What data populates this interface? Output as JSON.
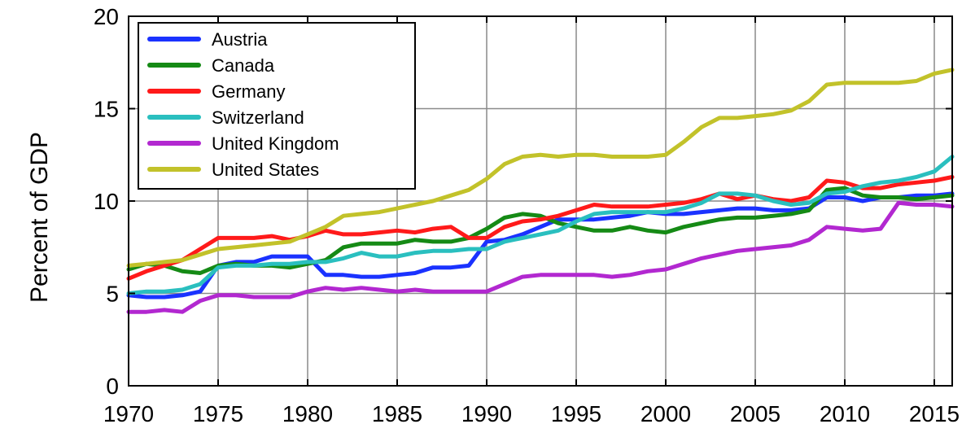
{
  "chart_data": {
    "type": "line",
    "title": "",
    "xlabel": "",
    "ylabel": "Percent of GDP",
    "xlim": [
      1970,
      2016
    ],
    "ylim": [
      0,
      20
    ],
    "xticks": [
      "1970",
      "1975",
      "1980",
      "1985",
      "1990",
      "1995",
      "2000",
      "2005",
      "2010",
      "2015"
    ],
    "yticks": [
      "0",
      "5",
      "10",
      "15",
      "20"
    ],
    "grid": true,
    "legend_position": "top-left",
    "x": [
      1970,
      1971,
      1972,
      1973,
      1974,
      1975,
      1976,
      1977,
      1978,
      1979,
      1980,
      1981,
      1982,
      1983,
      1984,
      1985,
      1986,
      1987,
      1988,
      1989,
      1990,
      1991,
      1992,
      1993,
      1994,
      1995,
      1996,
      1997,
      1998,
      1999,
      2000,
      2001,
      2002,
      2003,
      2004,
      2005,
      2006,
      2007,
      2008,
      2009,
      2010,
      2011,
      2012,
      2013,
      2014,
      2015,
      2016
    ],
    "series": [
      {
        "name": "Austria",
        "color": "#1a32ff",
        "values": [
          4.9,
          4.8,
          4.8,
          4.9,
          5.1,
          6.5,
          6.7,
          6.7,
          7.0,
          7.0,
          7.0,
          6.0,
          6.0,
          5.9,
          5.9,
          6.0,
          6.1,
          6.4,
          6.4,
          6.5,
          7.8,
          7.9,
          8.2,
          8.6,
          9.0,
          9.0,
          9.0,
          9.1,
          9.2,
          9.4,
          9.3,
          9.3,
          9.4,
          9.5,
          9.6,
          9.6,
          9.5,
          9.5,
          9.6,
          10.2,
          10.2,
          10.0,
          10.2,
          10.2,
          10.3,
          10.3,
          10.4
        ]
      },
      {
        "name": "Canada",
        "color": "#158a15",
        "values": [
          6.3,
          6.6,
          6.5,
          6.2,
          6.1,
          6.5,
          6.6,
          6.5,
          6.5,
          6.4,
          6.6,
          6.8,
          7.5,
          7.7,
          7.7,
          7.7,
          7.9,
          7.8,
          7.8,
          8.0,
          8.5,
          9.1,
          9.3,
          9.2,
          8.8,
          8.6,
          8.4,
          8.4,
          8.6,
          8.4,
          8.3,
          8.6,
          8.8,
          9.0,
          9.1,
          9.1,
          9.2,
          9.3,
          9.5,
          10.6,
          10.7,
          10.3,
          10.2,
          10.2,
          10.1,
          10.2,
          10.3
        ]
      },
      {
        "name": "Germany",
        "color": "#ff1a1a",
        "values": [
          5.8,
          6.2,
          6.5,
          6.8,
          7.4,
          8.0,
          8.0,
          8.0,
          8.1,
          7.9,
          8.1,
          8.4,
          8.2,
          8.2,
          8.3,
          8.4,
          8.3,
          8.5,
          8.6,
          8.0,
          8.0,
          8.6,
          8.9,
          9.0,
          9.2,
          9.5,
          9.8,
          9.7,
          9.7,
          9.7,
          9.8,
          9.9,
          10.1,
          10.4,
          10.1,
          10.3,
          10.1,
          10.0,
          10.2,
          11.1,
          11.0,
          10.7,
          10.7,
          10.9,
          11.0,
          11.1,
          11.3
        ]
      },
      {
        "name": "Switzerland",
        "color": "#2abfbf",
        "values": [
          5.0,
          5.1,
          5.1,
          5.2,
          5.5,
          6.4,
          6.5,
          6.5,
          6.6,
          6.6,
          6.7,
          6.7,
          6.9,
          7.2,
          7.0,
          7.0,
          7.2,
          7.3,
          7.3,
          7.4,
          7.4,
          7.8,
          8.0,
          8.2,
          8.4,
          8.9,
          9.3,
          9.4,
          9.4,
          9.4,
          9.4,
          9.6,
          9.9,
          10.4,
          10.4,
          10.3,
          10.0,
          9.8,
          9.9,
          10.4,
          10.5,
          10.8,
          11.0,
          11.1,
          11.3,
          11.6,
          12.4
        ]
      },
      {
        "name": "United Kingdom",
        "color": "#b228d0",
        "values": [
          4.0,
          4.0,
          4.1,
          4.0,
          4.6,
          4.9,
          4.9,
          4.8,
          4.8,
          4.8,
          5.1,
          5.3,
          5.2,
          5.3,
          5.2,
          5.1,
          5.2,
          5.1,
          5.1,
          5.1,
          5.1,
          5.5,
          5.9,
          6.0,
          6.0,
          6.0,
          6.0,
          5.9,
          6.0,
          6.2,
          6.3,
          6.6,
          6.9,
          7.1,
          7.3,
          7.4,
          7.5,
          7.6,
          7.9,
          8.6,
          8.5,
          8.4,
          8.5,
          9.9,
          9.8,
          9.8,
          9.7
        ]
      },
      {
        "name": "United States",
        "color": "#c2c22a",
        "values": [
          6.5,
          6.6,
          6.7,
          6.8,
          7.1,
          7.4,
          7.5,
          7.6,
          7.7,
          7.8,
          8.2,
          8.6,
          9.2,
          9.3,
          9.4,
          9.6,
          9.8,
          10.0,
          10.3,
          10.6,
          11.2,
          12.0,
          12.4,
          12.5,
          12.4,
          12.5,
          12.5,
          12.4,
          12.4,
          12.4,
          12.5,
          13.2,
          14.0,
          14.5,
          14.5,
          14.6,
          14.7,
          14.9,
          15.4,
          16.3,
          16.4,
          16.4,
          16.4,
          16.4,
          16.5,
          16.9,
          17.1
        ]
      }
    ]
  }
}
